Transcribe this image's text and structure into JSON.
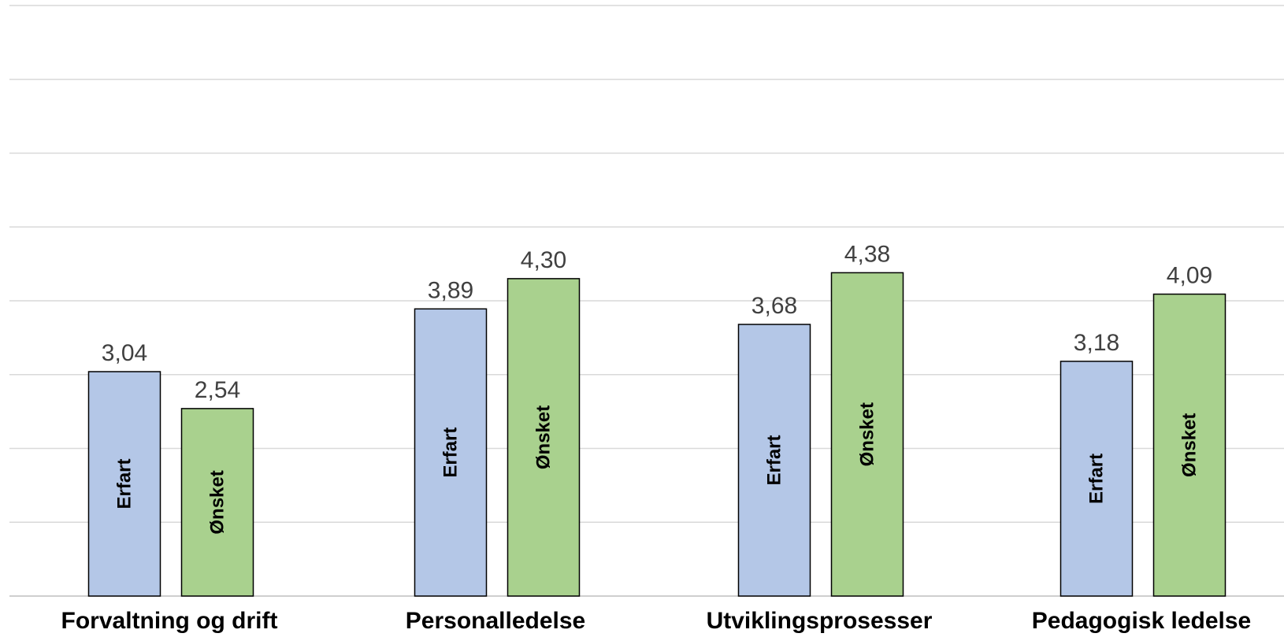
{
  "chart_data": {
    "type": "bar",
    "title": "",
    "xlabel": "",
    "ylabel": "",
    "ylim": [
      0,
      8
    ],
    "grid": true,
    "legend": "none",
    "categories": [
      "Forvaltning og drift",
      "Personalledelse",
      "Utviklingsprosesser",
      "Pedagogisk ledelse"
    ],
    "series": [
      {
        "name": "Erfart",
        "color": "#b4c7e7",
        "values": [
          3.04,
          3.89,
          3.68,
          3.18
        ],
        "labels": [
          "3,04",
          "3,89",
          "3,68",
          "3,18"
        ]
      },
      {
        "name": "Ønsket",
        "color": "#a9d18e",
        "values": [
          2.54,
          4.3,
          4.38,
          4.09
        ],
        "labels": [
          "2,54",
          "4,30",
          "4,38",
          "4,09"
        ]
      }
    ]
  }
}
